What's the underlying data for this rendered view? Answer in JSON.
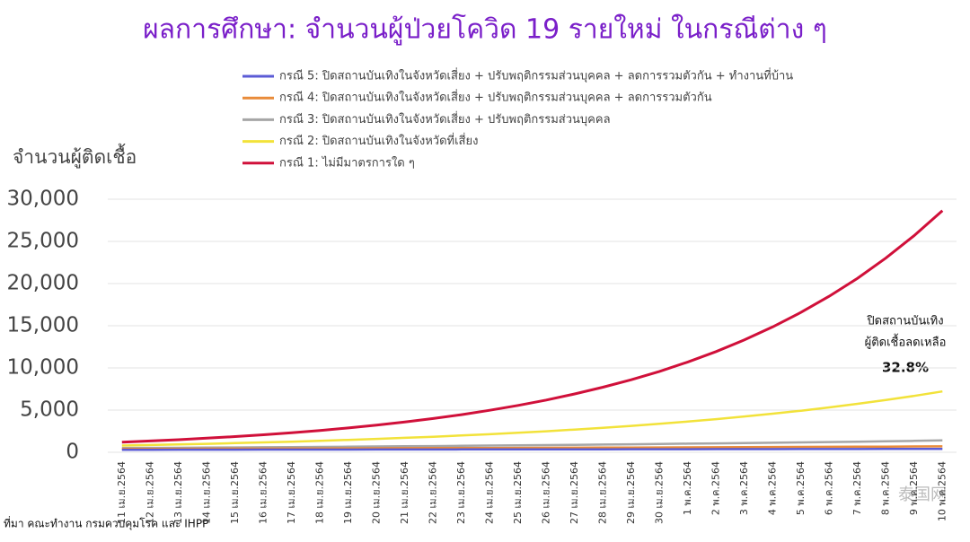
{
  "chart_data": {
    "type": "line",
    "title": "ผลการศึกษา: จำนวนผู้ป่วยโควิด 19 รายใหม่ ในกรณีต่าง ๆ",
    "y_label": "จำนวนผู้ติดเชื้อ",
    "annotation": [
      "ปิดสถานบันเทิง",
      "ผู้ติดเชื้อลดเหลือ",
      "32.8%"
    ],
    "source": "ที่มา คณะทำงาน กรมควบคุมโรค และ IHPP",
    "watermark": "泰国网",
    "categories": [
      "11 เม.ย.2564",
      "12 เม.ย.2564",
      "13 เม.ย.2564",
      "14 เม.ย.2564",
      "15 เม.ย.2564",
      "16 เม.ย.2564",
      "17 เม.ย.2564",
      "18 เม.ย.2564",
      "19 เม.ย.2564",
      "20 เม.ย.2564",
      "21 เม.ย.2564",
      "22 เม.ย.2564",
      "23 เม.ย.2564",
      "24 เม.ย.2564",
      "25 เม.ย.2564",
      "26 เม.ย.2564",
      "27 เม.ย.2564",
      "28 เม.ย.2564",
      "29 เม.ย.2564",
      "30 เม.ย.2564",
      "1 พ.ค.2564",
      "2 พ.ค.2564",
      "3 พ.ค.2564",
      "4 พ.ค.2564",
      "5 พ.ค.2564",
      "6 พ.ค.2564",
      "7 พ.ค.2564",
      "8 พ.ค.2564",
      "9 พ.ค.2564",
      "10 พ.ค.2564"
    ],
    "series": [
      {
        "name": "กรณี 5: ปิดสถานบันเทิงในจังหวัดเสี่ยง + ปรับพฤติกรรมส่วนบุคคล + ลดการรวมตัวกัน + ทำงานที่บ้าน",
        "color": "#5b5bd6",
        "values": [
          300,
          303,
          306,
          309,
          312,
          315,
          318,
          321,
          324,
          327,
          330,
          334,
          337,
          340,
          344,
          347,
          350,
          354,
          357,
          361,
          364,
          368,
          371,
          375,
          379,
          382,
          386,
          390,
          394,
          398
        ]
      },
      {
        "name": "กรณี 4: ปิดสถานบันเทิงในจังหวัดเสี่ยง + ปรับพฤติกรรมส่วนบุคคล + ลดการรวมตัวกัน",
        "color": "#e98b3a",
        "values": [
          400,
          408,
          416,
          424,
          432,
          440,
          449,
          458,
          467,
          476,
          485,
          495,
          504,
          514,
          524,
          534,
          545,
          555,
          566,
          577,
          589,
          600,
          612,
          624,
          636,
          648,
          661,
          674,
          687,
          700
        ]
      },
      {
        "name": "กรณี 3: ปิดสถานบันเทิงในจังหวัดเสี่ยง + ปรับพฤติกรรมส่วนบุคคล",
        "color": "#a6a6a6",
        "values": [
          500,
          518,
          537,
          556,
          576,
          597,
          619,
          641,
          664,
          688,
          713,
          739,
          765,
          793,
          822,
          851,
          882,
          914,
          947,
          981,
          1017,
          1053,
          1091,
          1131,
          1171,
          1214,
          1258,
          1303,
          1350,
          1399
        ]
      },
      {
        "name": "กรณี 2: ปิดสถานบันเทิงในจังหวัดที่เสี่ยง",
        "color": "#f2e23a",
        "values": [
          800,
          860,
          930,
          1000,
          1080,
          1170,
          1260,
          1360,
          1470,
          1580,
          1710,
          1840,
          1990,
          2140,
          2310,
          2490,
          2690,
          2900,
          3130,
          3380,
          3640,
          3930,
          4240,
          4570,
          4930,
          5320,
          5740,
          6190,
          6680,
          7210
        ]
      },
      {
        "name": "กรณี 1: ไม่มีมาตรการใด ๆ",
        "color": "#d0103a",
        "values": [
          1200,
          1340,
          1490,
          1670,
          1860,
          2070,
          2310,
          2580,
          2880,
          3210,
          3580,
          4000,
          4460,
          4980,
          5550,
          6190,
          6910,
          7710,
          8600,
          9590,
          10700,
          11940,
          13320,
          14860,
          16580,
          18500,
          20630,
          23020,
          25680,
          28650
        ]
      }
    ],
    "ylim": [
      0,
      30000
    ],
    "yticks": [
      0,
      {
        "value": 5000,
        "label": "5,000"
      },
      {
        "value": 10000,
        "label": "10,000"
      },
      {
        "value": 15000,
        "label": "15,000"
      },
      {
        "value": 20000,
        "label": "20,000"
      },
      {
        "value": 25000,
        "label": "25,000"
      },
      {
        "value": 30000,
        "label": "30,000"
      }
    ],
    "grid": true
  }
}
